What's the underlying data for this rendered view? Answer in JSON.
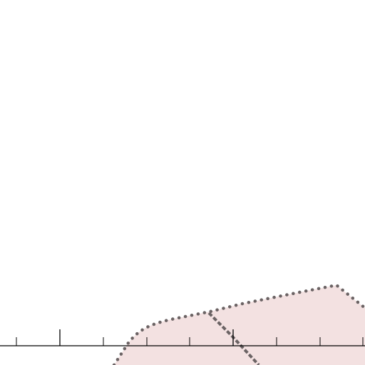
{
  "map": {
    "background_color": "#ffffff",
    "region": {
      "fill_color": "#f3e1e1",
      "border_color": "#6b6364",
      "border_style": "dotted"
    },
    "internal_boundary": {
      "color": "#6b6364",
      "style": "dashed"
    },
    "scale_bar": {
      "color": "#000000",
      "major_ticks": 5,
      "minor_ticks": 4
    }
  }
}
